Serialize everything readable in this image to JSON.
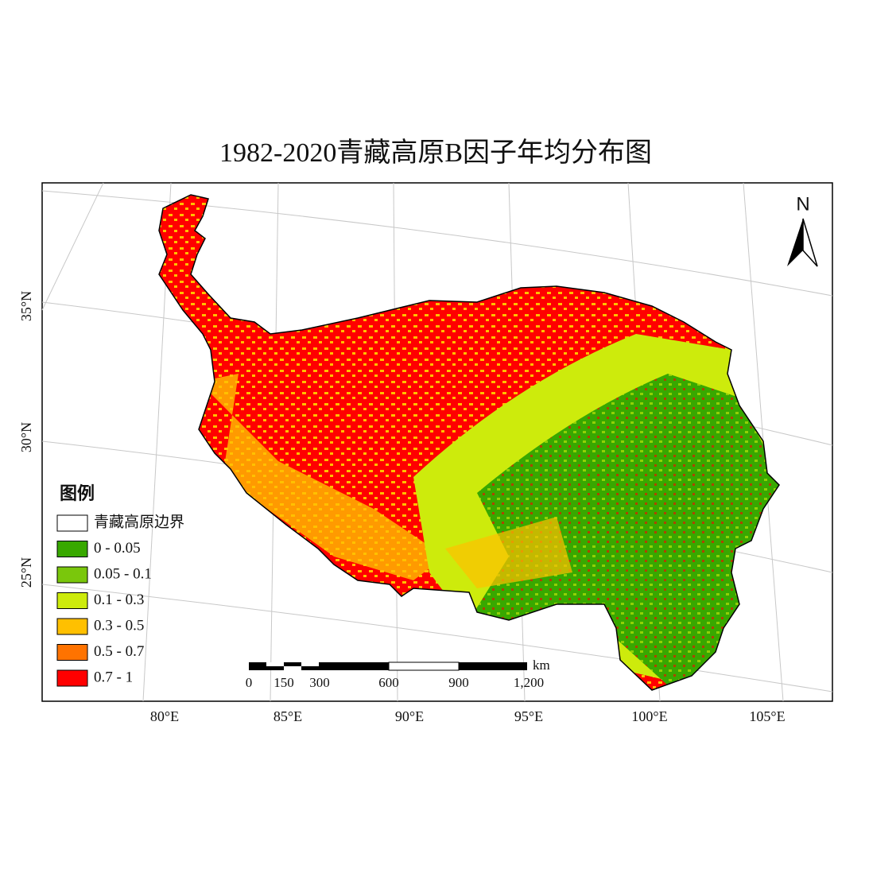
{
  "title": "1982-2020青藏高原B因子年均分布图",
  "north": "N",
  "legend": {
    "title": "图例",
    "items": [
      {
        "label": "青藏高原边界",
        "color": "#ffffff"
      },
      {
        "label": "0 - 0.05",
        "color": "#38a800"
      },
      {
        "label": "0.05 - 0.1",
        "color": "#7ac70c"
      },
      {
        "label": "0.1 - 0.3",
        "color": "#cdeb0c"
      },
      {
        "label": "0.3 - 0.5",
        "color": "#ffc000"
      },
      {
        "label": "0.5 - 0.7",
        "color": "#ff7300"
      },
      {
        "label": "0.7 - 1",
        "color": "#ff0000"
      }
    ]
  },
  "lat_labels": [
    "35°N",
    "30°N",
    "25°N"
  ],
  "lon_labels": [
    "80°E",
    "85°E",
    "90°E",
    "95°E",
    "100°E",
    "105°E"
  ],
  "scale_bar": {
    "labels": [
      "0",
      "150",
      "300",
      "600",
      "900",
      "1,200"
    ],
    "unit": "km"
  }
}
